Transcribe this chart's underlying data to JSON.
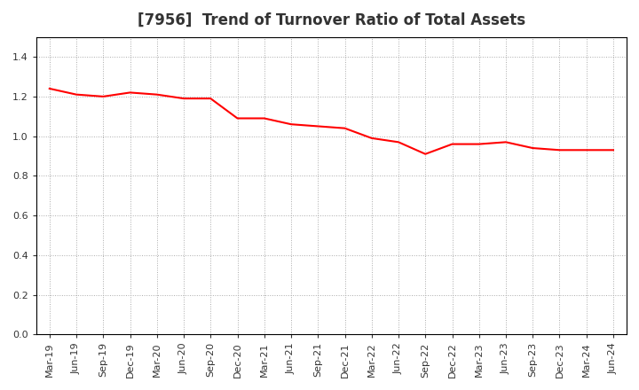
{
  "title": "[7956]  Trend of Turnover Ratio of Total Assets",
  "x_labels": [
    "Mar-19",
    "Jun-19",
    "Sep-19",
    "Dec-19",
    "Mar-20",
    "Jun-20",
    "Sep-20",
    "Dec-20",
    "Mar-21",
    "Jun-21",
    "Sep-21",
    "Dec-21",
    "Mar-22",
    "Jun-22",
    "Sep-22",
    "Dec-22",
    "Mar-23",
    "Jun-23",
    "Sep-23",
    "Dec-23",
    "Mar-24",
    "Jun-24"
  ],
  "values": [
    1.24,
    1.21,
    1.2,
    1.22,
    1.21,
    1.19,
    1.19,
    1.09,
    1.09,
    1.06,
    1.05,
    1.04,
    0.99,
    0.97,
    0.91,
    0.96,
    0.96,
    0.97,
    0.94,
    0.93,
    0.93,
    0.93
  ],
  "line_color": "#FF0000",
  "line_width": 1.5,
  "ylim": [
    0.0,
    1.5
  ],
  "yticks": [
    0.0,
    0.2,
    0.4,
    0.6,
    0.8,
    1.0,
    1.2,
    1.4
  ],
  "grid_color": "#aaaaaa",
  "background_color": "#ffffff",
  "title_fontsize": 12,
  "tick_fontsize": 8,
  "title_color": "#333333"
}
